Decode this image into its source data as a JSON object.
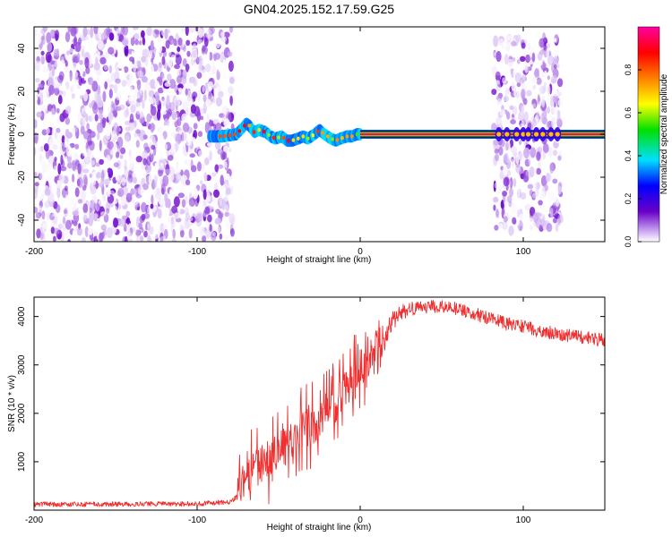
{
  "figure": {
    "title": "GN04.2025.152.17.59.G25"
  },
  "chart_data": [
    {
      "type": "heatmap",
      "xlabel": "Height of straight line (km)",
      "ylabel": "Frequency (Hz)",
      "xlim": [
        -200,
        150
      ],
      "ylim": [
        -50,
        50
      ],
      "x_ticks": [
        -200,
        -100,
        0,
        100
      ],
      "y_ticks": [
        -40,
        -20,
        0,
        20,
        40
      ],
      "colorbar": {
        "label": "Normalized spectral amplitude",
        "range": [
          0,
          1
        ],
        "ticks": [
          0.0,
          0.2,
          0.4,
          0.6,
          0.8
        ],
        "tick_labels": [
          "0.0",
          "0.2",
          "0.4",
          "0.6",
          "0.8"
        ],
        "colors": [
          "#ffffff",
          "#6a00c8",
          "#0000ff",
          "#00e0ff",
          "#00e000",
          "#ffff00",
          "#ff8000",
          "#ff0000",
          "#ff00a0"
        ]
      },
      "regions": [
        {
          "x": [
            -200,
            -78
          ],
          "f": [
            -50,
            50
          ],
          "amplitude": [
            0.0,
            0.15
          ],
          "note": "broadband noise"
        },
        {
          "x": [
            -92,
            0
          ],
          "f": [
            -8,
            8
          ],
          "amplitude": [
            0.2,
            0.8
          ],
          "note": "wavering ridge near 0 Hz"
        },
        {
          "x": [
            0,
            150
          ],
          "f": [
            -1,
            1
          ],
          "amplitude": [
            0.9,
            1.0
          ],
          "note": "strong line at 0 Hz"
        },
        {
          "x": [
            82,
            123
          ],
          "f": [
            -45,
            45
          ],
          "amplitude": [
            0.0,
            0.15
          ],
          "note": "noise columns"
        }
      ],
      "ridge": {
        "x": [
          -92,
          -85,
          -80,
          -76,
          -72,
          -70,
          -68,
          -65,
          -62,
          -58,
          -55,
          -52,
          -48,
          -45,
          -42,
          -38,
          -35,
          -32,
          -28,
          -25,
          -22,
          -18,
          -15,
          -12,
          -8,
          -5,
          -2,
          0
        ],
        "f": [
          -1,
          -1,
          -0.5,
          0,
          3,
          5,
          4,
          1,
          2,
          1,
          -1,
          -2,
          -1,
          -3,
          -3,
          -2,
          -1,
          -2,
          0,
          2,
          0,
          -2,
          -3,
          -2,
          -1,
          -1,
          0,
          0
        ]
      },
      "line_frequency_hz": 0
    },
    {
      "type": "line",
      "xlabel": "Height of straight line (km)",
      "ylabel": "SNR (10 * v/v)",
      "xlim": [
        -200,
        150
      ],
      "ylim": [
        0,
        4400
      ],
      "x_ticks": [
        -200,
        -100,
        0,
        100
      ],
      "y_ticks": [
        1000,
        2000,
        3000,
        4000
      ],
      "color": "#f03030",
      "series": [
        {
          "x": [
            -200,
            -180,
            -160,
            -140,
            -120,
            -100,
            -90,
            -80,
            -75,
            -70,
            -65,
            -60,
            -55,
            -50,
            -45,
            -40,
            -35,
            -30,
            -25,
            -20,
            -15,
            -10,
            -5,
            0,
            5,
            10,
            15,
            20,
            25,
            30,
            40,
            50,
            60,
            70,
            80,
            90,
            100,
            110,
            120,
            130,
            140,
            150
          ],
          "y": [
            120,
            120,
            120,
            125,
            130,
            130,
            150,
            170,
            280,
            700,
            800,
            950,
            1050,
            1250,
            1350,
            1550,
            1700,
            1750,
            1800,
            2000,
            2200,
            2450,
            2700,
            2900,
            3100,
            3400,
            3650,
            3900,
            4050,
            4150,
            4200,
            4200,
            4150,
            4050,
            3950,
            3850,
            3800,
            3700,
            3650,
            3600,
            3550,
            3500
          ]
        }
      ]
    }
  ]
}
